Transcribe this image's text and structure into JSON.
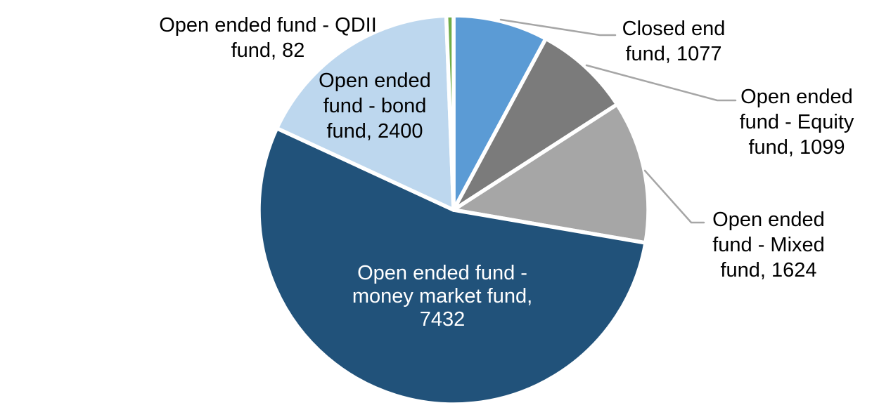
{
  "chart_data": {
    "type": "pie",
    "title": "",
    "legend": "none",
    "background_color": "#FFFFFF",
    "slice_border_color": "#FFFFFF",
    "leader_line_color": "#A6A6A6",
    "total": 13714,
    "start_angle_deg": 0,
    "direction": "clockwise",
    "slices": [
      {
        "id": "closed-end-fund",
        "label": "Closed end fund",
        "value": 1077,
        "color": "#5B9BD5",
        "label_placement": "outside",
        "text_color": "#000000",
        "label_lines": [
          "Closed end",
          "fund, 1077"
        ]
      },
      {
        "id": "open-ended-equity-fund",
        "label": "Open ended fund - Equity fund",
        "value": 1099,
        "color": "#7B7B7B",
        "label_placement": "outside",
        "text_color": "#000000",
        "label_lines": [
          "Open ended",
          "fund - Equity",
          "fund, 1099"
        ]
      },
      {
        "id": "open-ended-mixed-fund",
        "label": "Open ended fund - Mixed fund",
        "value": 1624,
        "color": "#A6A6A6",
        "label_placement": "outside",
        "text_color": "#000000",
        "label_lines": [
          "Open ended",
          "fund - Mixed",
          "fund, 1624"
        ]
      },
      {
        "id": "open-ended-money-market-fund",
        "label": "Open ended fund - money market fund",
        "value": 7432,
        "color": "#21527A",
        "label_placement": "inside",
        "text_color": "#FFFFFF",
        "label_lines": [
          "Open ended fund -",
          "money market fund,",
          "7432"
        ]
      },
      {
        "id": "open-ended-bond-fund",
        "label": "Open ended fund - bond fund",
        "value": 2400,
        "color": "#BDD7EE",
        "label_placement": "inside",
        "text_color": "#000000",
        "label_lines": [
          "Open ended",
          "fund - bond",
          "fund, 2400"
        ]
      },
      {
        "id": "open-ended-qdii-fund",
        "label": "Open ended fund - QDII fund",
        "value": 82,
        "color": "#70AD47",
        "label_placement": "outside",
        "text_color": "#000000",
        "label_lines": [
          "Open ended fund - QDII",
          "fund, 82"
        ]
      }
    ]
  }
}
